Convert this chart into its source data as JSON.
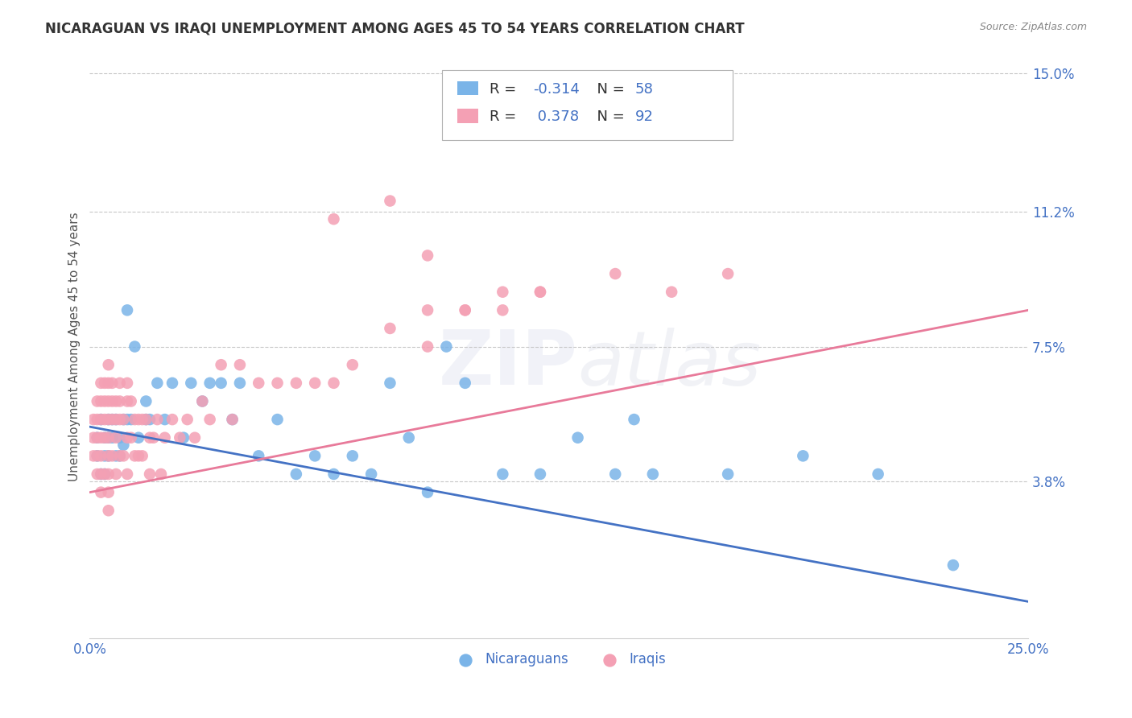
{
  "title": "NICARAGUAN VS IRAQI UNEMPLOYMENT AMONG AGES 45 TO 54 YEARS CORRELATION CHART",
  "source": "Source: ZipAtlas.com",
  "ylabel": "Unemployment Among Ages 45 to 54 years",
  "xlim": [
    0.0,
    0.25
  ],
  "ylim": [
    -0.005,
    0.155
  ],
  "yticks": [
    0.0,
    0.038,
    0.075,
    0.112,
    0.15
  ],
  "ytick_labels": [
    "",
    "3.8%",
    "7.5%",
    "11.2%",
    "15.0%"
  ],
  "xticks": [
    0.0,
    0.05,
    0.1,
    0.15,
    0.2,
    0.25
  ],
  "xtick_labels": [
    "0.0%",
    "",
    "",
    "",
    "",
    "25.0%"
  ],
  "nicaraguan_color": "#7ab4e8",
  "iraqi_color": "#f4a0b4",
  "trend_nicaraguan_color": "#4472c4",
  "trend_iraqi_color": "#e87a9a",
  "nicaraguan_R": -0.314,
  "nicaraguan_N": 58,
  "iraqi_R": 0.378,
  "iraqi_N": 92,
  "background_color": "#ffffff",
  "grid_color": "#c8c8c8",
  "tick_color": "#4472c4",
  "title_color": "#333333",
  "watermark_text": "ZIPatlas",
  "legend_r_color": "#333333",
  "legend_n_color": "#4472c4",
  "nic_trend_x0": 0.0,
  "nic_trend_y0": 0.053,
  "nic_trend_x1": 0.25,
  "nic_trend_y1": 0.005,
  "iraqi_trend_x0": 0.0,
  "iraqi_trend_y0": 0.035,
  "iraqi_trend_x1": 0.25,
  "iraqi_trend_y1": 0.085,
  "legend_nicaraguan_label": "Nicaraguans",
  "legend_iraqi_label": "Iraqis",
  "nic_x": [
    0.002,
    0.002,
    0.003,
    0.003,
    0.004,
    0.004,
    0.004,
    0.005,
    0.005,
    0.005,
    0.006,
    0.006,
    0.007,
    0.007,
    0.008,
    0.008,
    0.009,
    0.009,
    0.01,
    0.01,
    0.011,
    0.012,
    0.013,
    0.015,
    0.015,
    0.016,
    0.018,
    0.02,
    0.022,
    0.025,
    0.027,
    0.03,
    0.032,
    0.035,
    0.038,
    0.04,
    0.045,
    0.05,
    0.055,
    0.06,
    0.065,
    0.07,
    0.075,
    0.08,
    0.085,
    0.09,
    0.095,
    0.1,
    0.11,
    0.12,
    0.13,
    0.14,
    0.15,
    0.17,
    0.19,
    0.21,
    0.23,
    0.145
  ],
  "nic_y": [
    0.05,
    0.045,
    0.055,
    0.04,
    0.05,
    0.045,
    0.04,
    0.055,
    0.05,
    0.045,
    0.055,
    0.05,
    0.055,
    0.045,
    0.05,
    0.045,
    0.055,
    0.048,
    0.085,
    0.055,
    0.055,
    0.075,
    0.05,
    0.06,
    0.055,
    0.055,
    0.065,
    0.055,
    0.065,
    0.05,
    0.065,
    0.06,
    0.065,
    0.065,
    0.055,
    0.065,
    0.045,
    0.055,
    0.04,
    0.045,
    0.04,
    0.045,
    0.04,
    0.065,
    0.05,
    0.035,
    0.075,
    0.065,
    0.04,
    0.04,
    0.05,
    0.04,
    0.04,
    0.04,
    0.045,
    0.04,
    0.015,
    0.055
  ],
  "iraqi_x": [
    0.001,
    0.001,
    0.001,
    0.002,
    0.002,
    0.002,
    0.002,
    0.002,
    0.003,
    0.003,
    0.003,
    0.003,
    0.003,
    0.003,
    0.003,
    0.004,
    0.004,
    0.004,
    0.004,
    0.004,
    0.005,
    0.005,
    0.005,
    0.005,
    0.005,
    0.005,
    0.005,
    0.005,
    0.005,
    0.006,
    0.006,
    0.006,
    0.006,
    0.007,
    0.007,
    0.007,
    0.007,
    0.008,
    0.008,
    0.008,
    0.008,
    0.009,
    0.009,
    0.01,
    0.01,
    0.01,
    0.01,
    0.011,
    0.011,
    0.012,
    0.012,
    0.013,
    0.013,
    0.014,
    0.014,
    0.015,
    0.016,
    0.016,
    0.017,
    0.018,
    0.019,
    0.02,
    0.022,
    0.024,
    0.026,
    0.028,
    0.03,
    0.032,
    0.035,
    0.038,
    0.04,
    0.045,
    0.05,
    0.055,
    0.06,
    0.065,
    0.07,
    0.08,
    0.09,
    0.1,
    0.12,
    0.14,
    0.155,
    0.17,
    0.09,
    0.1,
    0.11,
    0.12,
    0.065,
    0.08,
    0.09,
    0.11
  ],
  "iraqi_y": [
    0.055,
    0.05,
    0.045,
    0.06,
    0.055,
    0.05,
    0.045,
    0.04,
    0.065,
    0.06,
    0.055,
    0.05,
    0.045,
    0.04,
    0.035,
    0.065,
    0.06,
    0.055,
    0.05,
    0.04,
    0.07,
    0.065,
    0.06,
    0.055,
    0.05,
    0.045,
    0.04,
    0.035,
    0.03,
    0.065,
    0.06,
    0.055,
    0.045,
    0.06,
    0.055,
    0.05,
    0.04,
    0.065,
    0.06,
    0.055,
    0.045,
    0.055,
    0.045,
    0.065,
    0.06,
    0.05,
    0.04,
    0.06,
    0.05,
    0.055,
    0.045,
    0.055,
    0.045,
    0.055,
    0.045,
    0.055,
    0.05,
    0.04,
    0.05,
    0.055,
    0.04,
    0.05,
    0.055,
    0.05,
    0.055,
    0.05,
    0.06,
    0.055,
    0.07,
    0.055,
    0.07,
    0.065,
    0.065,
    0.065,
    0.065,
    0.065,
    0.07,
    0.08,
    0.085,
    0.085,
    0.09,
    0.095,
    0.09,
    0.095,
    0.075,
    0.085,
    0.085,
    0.09,
    0.11,
    0.115,
    0.1,
    0.09
  ]
}
